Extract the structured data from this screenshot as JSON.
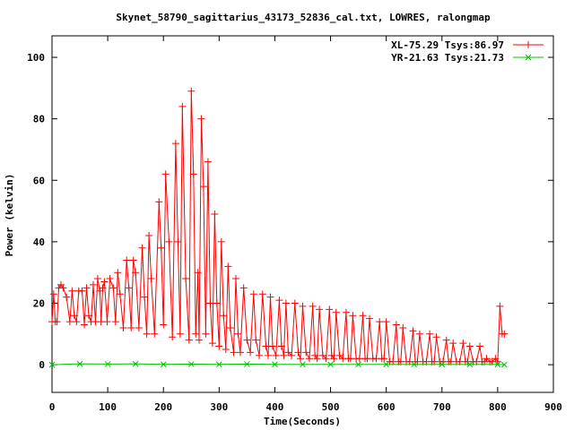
{
  "chart_data": {
    "type": "line",
    "title": "Skynet_58790_sagittarius_43173_52836_cal.txt, LOWRES, ralongmap",
    "xlabel": "Time(Seconds)",
    "ylabel": "Power (kelvin)",
    "xlim": [
      0,
      900
    ],
    "ylim": [
      -9,
      107
    ],
    "xticks": [
      0,
      100,
      200,
      300,
      400,
      500,
      600,
      700,
      800,
      900
    ],
    "yticks": [
      0,
      20,
      40,
      60,
      80,
      100
    ],
    "grid": false,
    "legend_position": "top-right",
    "series": [
      {
        "name": "XL-75.29 Tsys:86.97",
        "color": "#ff0000",
        "marker": "plus",
        "x": [
          0,
          3,
          6,
          9,
          12,
          16,
          20,
          26,
          32,
          36,
          40,
          44,
          48,
          54,
          58,
          62,
          66,
          70,
          74,
          78,
          82,
          86,
          88,
          91,
          94,
          99,
          104,
          110,
          114,
          118,
          122,
          128,
          134,
          138,
          142,
          146,
          150,
          156,
          162,
          166,
          170,
          174,
          178,
          184,
          192,
          196,
          200,
          204,
          210,
          216,
          222,
          226,
          230,
          234,
          240,
          246,
          250,
          254,
          258,
          262,
          264,
          268,
          272,
          276,
          280,
          284,
          288,
          292,
          296,
          300,
          304,
          308,
          312,
          316,
          320,
          326,
          330,
          334,
          338,
          344,
          350,
          356,
          362,
          366,
          372,
          378,
          384,
          388,
          392,
          396,
          402,
          408,
          412,
          416,
          420,
          424,
          430,
          436,
          442,
          446,
          450,
          456,
          462,
          468,
          472,
          476,
          480,
          486,
          492,
          498,
          502,
          506,
          510,
          516,
          522,
          528,
          532,
          536,
          540,
          546,
          552,
          558,
          562,
          566,
          570,
          576,
          582,
          588,
          592,
          596,
          600,
          606,
          612,
          618,
          622,
          626,
          630,
          636,
          642,
          648,
          652,
          656,
          660,
          666,
          672,
          678,
          682,
          686,
          690,
          696,
          702,
          708,
          712,
          716,
          720,
          726,
          732,
          738,
          742,
          746,
          750,
          756,
          762,
          768,
          772,
          776,
          780,
          786,
          790,
          796,
          800,
          804,
          808,
          812
        ],
        "y": [
          14,
          23,
          14,
          14,
          25,
          26,
          25,
          22,
          14,
          24,
          16,
          14,
          24,
          24,
          13,
          25,
          16,
          14,
          26,
          14,
          28,
          24,
          14,
          25,
          27,
          14,
          28,
          25,
          14,
          30,
          23,
          12,
          34,
          25,
          12,
          34,
          30,
          12,
          38,
          22,
          10,
          42,
          28,
          10,
          53,
          38,
          13,
          62,
          40,
          9,
          72,
          40,
          10,
          84,
          28,
          8,
          89,
          62,
          10,
          30,
          8,
          80,
          58,
          10,
          66,
          20,
          7,
          49,
          20,
          6,
          40,
          16,
          5,
          32,
          12,
          4,
          28,
          10,
          4,
          25,
          8,
          4,
          23,
          8,
          3,
          23,
          6,
          3,
          22,
          6,
          3,
          21,
          6,
          3,
          20,
          4,
          3,
          20,
          4,
          2,
          19,
          4,
          2,
          19,
          3,
          2,
          18,
          3,
          2,
          18,
          3,
          2,
          17,
          3,
          2,
          17,
          2,
          2,
          16,
          2,
          2,
          16,
          2,
          2,
          15,
          2,
          2,
          14,
          2,
          2,
          14,
          1,
          1,
          13,
          1,
          1,
          12,
          1,
          1,
          11,
          1,
          1,
          10,
          1,
          1,
          10,
          1,
          1,
          9,
          1,
          1,
          8,
          1,
          1,
          7,
          1,
          1,
          7,
          1,
          1,
          6,
          1,
          1,
          6,
          1,
          1,
          2,
          1,
          1,
          2,
          1,
          19,
          10,
          10
        ]
      },
      {
        "name": "YR-21.63 Tsys:21.73",
        "color": "#00c000",
        "marker": "cross",
        "x": [
          0,
          50,
          100,
          150,
          200,
          250,
          300,
          350,
          400,
          450,
          500,
          550,
          600,
          650,
          700,
          750,
          800,
          812
        ],
        "y": [
          0,
          0.3,
          0.2,
          0.3,
          0.1,
          0.2,
          0.1,
          0.2,
          0.1,
          0.1,
          0.1,
          0.1,
          0.1,
          0.1,
          0.1,
          0.1,
          0.1,
          0
        ]
      }
    ]
  }
}
